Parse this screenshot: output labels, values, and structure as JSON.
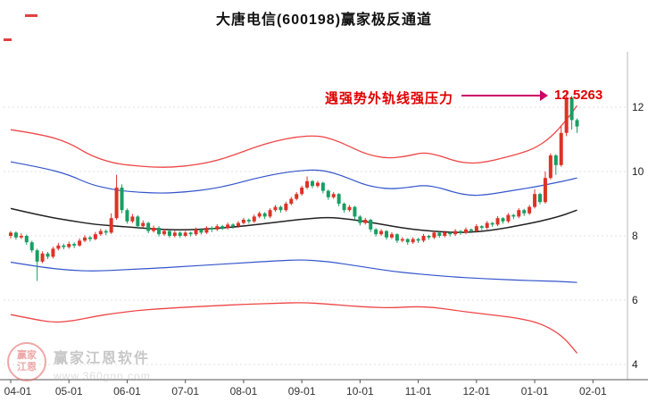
{
  "window": {
    "title": "大唐电信(600198)赢家极反通道"
  },
  "annotation": {
    "pressure_text": "遇强势外轨线强压力",
    "price_label": "12.5263",
    "arrow_color": "#cc0066"
  },
  "watermark": {
    "logo_line1": "赢家",
    "logo_line2": "江恩",
    "brand": "赢家江恩软件",
    "site": "www.360gnn.com"
  },
  "chart_data": {
    "type": "candlestick",
    "title": "大唐电信(600198)赢家极反通道",
    "x_ticks": [
      "04-01",
      "05-01",
      "06-01",
      "07-01",
      "08-01",
      "09-01",
      "10-01",
      "11-01",
      "12-01",
      "01-01",
      "02-01"
    ],
    "y_ticks": [
      12,
      10,
      8,
      6,
      4
    ],
    "ylim": [
      4,
      13.5
    ],
    "candles_per_month": 11,
    "grid": "dotted-horizontal",
    "legend_position": "none",
    "up_color": "#dd3326",
    "down_color": "#189e62",
    "peak_price": 12.5263,
    "candles": [
      [
        8.0,
        8.15,
        7.92,
        8.1
      ],
      [
        8.1,
        8.14,
        7.88,
        7.95
      ],
      [
        7.95,
        8.08,
        7.9,
        8.0
      ],
      [
        8.0,
        8.04,
        7.72,
        7.8
      ],
      [
        7.8,
        7.85,
        7.48,
        7.55
      ],
      [
        7.55,
        7.6,
        6.6,
        7.2
      ],
      [
        7.2,
        7.52,
        7.15,
        7.45
      ],
      [
        7.45,
        7.5,
        7.28,
        7.35
      ],
      [
        7.35,
        7.66,
        7.3,
        7.6
      ],
      [
        7.6,
        7.78,
        7.55,
        7.7
      ],
      [
        7.7,
        7.76,
        7.58,
        7.65
      ],
      [
        7.65,
        7.82,
        7.6,
        7.75
      ],
      [
        7.75,
        7.8,
        7.62,
        7.7
      ],
      [
        7.7,
        7.92,
        7.66,
        7.85
      ],
      [
        7.85,
        8.02,
        7.8,
        7.95
      ],
      [
        7.95,
        8.0,
        7.82,
        7.9
      ],
      [
        7.9,
        8.12,
        7.86,
        8.05
      ],
      [
        8.05,
        8.22,
        8.0,
        8.15
      ],
      [
        8.15,
        8.2,
        8.02,
        8.1
      ],
      [
        8.1,
        8.7,
        8.06,
        8.55
      ],
      [
        8.55,
        9.9,
        8.5,
        9.5
      ],
      [
        9.5,
        9.6,
        8.7,
        8.8
      ],
      [
        8.8,
        8.85,
        8.38,
        8.45
      ],
      [
        8.45,
        8.68,
        8.4,
        8.6
      ],
      [
        8.6,
        8.64,
        8.22,
        8.3
      ],
      [
        8.3,
        8.48,
        8.25,
        8.4
      ],
      [
        8.4,
        8.44,
        8.08,
        8.15
      ],
      [
        8.15,
        8.32,
        8.1,
        8.25
      ],
      [
        8.25,
        8.3,
        7.98,
        8.05
      ],
      [
        8.05,
        8.22,
        8.0,
        8.15
      ],
      [
        8.15,
        8.18,
        7.94,
        8.0
      ],
      [
        8.0,
        8.16,
        7.95,
        8.1
      ],
      [
        8.1,
        8.14,
        7.94,
        8.0
      ],
      [
        8.0,
        8.15,
        7.96,
        8.1
      ],
      [
        8.1,
        8.13,
        7.98,
        8.05
      ],
      [
        8.05,
        8.26,
        8.0,
        8.2
      ],
      [
        8.2,
        8.24,
        8.04,
        8.1
      ],
      [
        8.1,
        8.3,
        8.06,
        8.25
      ],
      [
        8.25,
        8.3,
        8.12,
        8.2
      ],
      [
        8.2,
        8.36,
        8.15,
        8.3
      ],
      [
        8.3,
        8.34,
        8.18,
        8.25
      ],
      [
        8.25,
        8.41,
        8.2,
        8.35
      ],
      [
        8.35,
        8.39,
        8.22,
        8.3
      ],
      [
        8.3,
        8.46,
        8.25,
        8.4
      ],
      [
        8.4,
        8.56,
        8.35,
        8.5
      ],
      [
        8.5,
        8.54,
        8.38,
        8.45
      ],
      [
        8.45,
        8.66,
        8.4,
        8.6
      ],
      [
        8.6,
        8.76,
        8.55,
        8.7
      ],
      [
        8.7,
        8.74,
        8.52,
        8.6
      ],
      [
        8.6,
        8.86,
        8.55,
        8.8
      ],
      [
        8.8,
        8.96,
        8.75,
        8.9
      ],
      [
        8.9,
        8.94,
        8.72,
        8.8
      ],
      [
        8.8,
        9.06,
        8.75,
        9.0
      ],
      [
        9.0,
        9.21,
        8.95,
        9.15
      ],
      [
        9.15,
        9.36,
        9.1,
        9.3
      ],
      [
        9.3,
        9.56,
        9.25,
        9.5
      ],
      [
        9.5,
        9.85,
        9.45,
        9.7
      ],
      [
        9.7,
        9.74,
        9.48,
        9.55
      ],
      [
        9.55,
        9.71,
        9.5,
        9.65
      ],
      [
        9.65,
        9.68,
        9.32,
        9.4
      ],
      [
        9.4,
        9.44,
        9.12,
        9.2
      ],
      [
        9.2,
        9.36,
        9.15,
        9.3
      ],
      [
        9.3,
        9.33,
        8.92,
        9.0
      ],
      [
        9.0,
        9.04,
        8.72,
        8.8
      ],
      [
        8.8,
        8.96,
        8.75,
        8.9
      ],
      [
        8.9,
        8.93,
        8.52,
        8.6
      ],
      [
        8.6,
        8.64,
        8.32,
        8.4
      ],
      [
        8.4,
        8.56,
        8.35,
        8.5
      ],
      [
        8.5,
        8.53,
        8.12,
        8.2
      ],
      [
        8.2,
        8.24,
        7.98,
        8.05
      ],
      [
        8.05,
        8.21,
        8.0,
        8.15
      ],
      [
        8.15,
        8.18,
        7.88,
        7.95
      ],
      [
        7.95,
        8.11,
        7.9,
        8.05
      ],
      [
        8.05,
        8.08,
        7.78,
        7.85
      ],
      [
        7.85,
        7.96,
        7.8,
        7.9
      ],
      [
        7.9,
        7.93,
        7.72,
        7.8
      ],
      [
        7.8,
        7.96,
        7.75,
        7.9
      ],
      [
        7.9,
        7.94,
        7.78,
        7.85
      ],
      [
        7.85,
        8.06,
        7.8,
        8.0
      ],
      [
        8.0,
        8.03,
        7.88,
        7.95
      ],
      [
        7.95,
        8.16,
        7.9,
        8.1
      ],
      [
        8.1,
        8.13,
        7.94,
        8.0
      ],
      [
        8.0,
        8.16,
        7.95,
        8.1
      ],
      [
        8.1,
        8.13,
        7.98,
        8.05
      ],
      [
        8.05,
        8.21,
        8.0,
        8.15
      ],
      [
        8.15,
        8.18,
        8.03,
        8.1
      ],
      [
        8.1,
        8.26,
        8.05,
        8.2
      ],
      [
        8.2,
        8.23,
        8.08,
        8.15
      ],
      [
        8.15,
        8.36,
        8.1,
        8.3
      ],
      [
        8.3,
        8.33,
        8.18,
        8.25
      ],
      [
        8.25,
        8.46,
        8.2,
        8.4
      ],
      [
        8.4,
        8.43,
        8.28,
        8.35
      ],
      [
        8.35,
        8.61,
        8.3,
        8.55
      ],
      [
        8.55,
        8.58,
        8.38,
        8.45
      ],
      [
        8.45,
        8.71,
        8.4,
        8.65
      ],
      [
        8.65,
        8.68,
        8.52,
        8.6
      ],
      [
        8.6,
        8.86,
        8.55,
        8.8
      ],
      [
        8.8,
        8.84,
        8.62,
        8.7
      ],
      [
        8.7,
        8.96,
        8.65,
        8.9
      ],
      [
        8.9,
        9.45,
        8.85,
        9.3
      ],
      [
        9.3,
        9.34,
        8.98,
        9.05
      ],
      [
        9.05,
        10.0,
        9.0,
        9.8
      ],
      [
        9.8,
        10.56,
        9.75,
        10.5
      ],
      [
        10.5,
        10.54,
        9.9,
        10.2
      ],
      [
        10.2,
        11.4,
        10.15,
        11.2
      ],
      [
        11.2,
        12.53,
        11.1,
        12.3
      ],
      [
        12.3,
        12.35,
        11.3,
        11.6
      ],
      [
        11.6,
        11.65,
        11.2,
        11.4
      ]
    ],
    "lines": [
      {
        "name": "outer-rail-top",
        "color": "#ee4545",
        "width": 1.3,
        "points": [
          [
            0,
            11.3
          ],
          [
            6,
            11.15
          ],
          [
            11,
            10.9
          ],
          [
            15,
            10.5
          ],
          [
            19,
            10.28
          ],
          [
            22,
            10.2
          ],
          [
            28,
            10.12
          ],
          [
            33,
            10.16
          ],
          [
            38,
            10.3
          ],
          [
            42,
            10.5
          ],
          [
            46,
            10.75
          ],
          [
            50,
            10.95
          ],
          [
            54,
            11.08
          ],
          [
            58,
            11.12
          ],
          [
            61,
            11.0
          ],
          [
            64,
            10.78
          ],
          [
            67,
            10.55
          ],
          [
            71,
            10.4
          ],
          [
            75,
            10.48
          ],
          [
            78,
            10.6
          ],
          [
            81,
            10.5
          ],
          [
            84,
            10.32
          ],
          [
            87,
            10.25
          ],
          [
            90,
            10.3
          ],
          [
            93,
            10.42
          ],
          [
            96,
            10.55
          ],
          [
            99,
            10.72
          ],
          [
            102,
            11.05
          ],
          [
            105,
            11.6
          ],
          [
            107,
            12.05
          ]
        ]
      },
      {
        "name": "inner-rail-top",
        "color": "#3355cc",
        "width": 1.2,
        "points": [
          [
            0,
            10.3
          ],
          [
            6,
            10.12
          ],
          [
            11,
            9.9
          ],
          [
            15,
            9.6
          ],
          [
            19,
            9.45
          ],
          [
            22,
            9.38
          ],
          [
            28,
            9.32
          ],
          [
            33,
            9.36
          ],
          [
            38,
            9.46
          ],
          [
            42,
            9.6
          ],
          [
            46,
            9.78
          ],
          [
            50,
            9.92
          ],
          [
            54,
            10.02
          ],
          [
            58,
            10.06
          ],
          [
            61,
            9.96
          ],
          [
            64,
            9.78
          ],
          [
            67,
            9.58
          ],
          [
            71,
            9.45
          ],
          [
            75,
            9.5
          ],
          [
            78,
            9.58
          ],
          [
            81,
            9.5
          ],
          [
            84,
            9.34
          ],
          [
            87,
            9.25
          ],
          [
            90,
            9.28
          ],
          [
            93,
            9.36
          ],
          [
            96,
            9.44
          ],
          [
            99,
            9.52
          ],
          [
            102,
            9.62
          ],
          [
            105,
            9.72
          ],
          [
            107,
            9.8
          ]
        ]
      },
      {
        "name": "mid-line",
        "color": "#222222",
        "width": 1.5,
        "points": [
          [
            0,
            8.85
          ],
          [
            6,
            8.62
          ],
          [
            11,
            8.48
          ],
          [
            16,
            8.35
          ],
          [
            22,
            8.28
          ],
          [
            28,
            8.2
          ],
          [
            33,
            8.18
          ],
          [
            38,
            8.22
          ],
          [
            44,
            8.3
          ],
          [
            50,
            8.42
          ],
          [
            55,
            8.52
          ],
          [
            60,
            8.58
          ],
          [
            64,
            8.52
          ],
          [
            68,
            8.42
          ],
          [
            72,
            8.3
          ],
          [
            76,
            8.2
          ],
          [
            80,
            8.14
          ],
          [
            84,
            8.1
          ],
          [
            88,
            8.12
          ],
          [
            92,
            8.2
          ],
          [
            96,
            8.32
          ],
          [
            100,
            8.45
          ],
          [
            104,
            8.62
          ],
          [
            107,
            8.8
          ]
        ]
      },
      {
        "name": "inner-rail-bottom",
        "color": "#3355cc",
        "width": 1.2,
        "points": [
          [
            0,
            7.18
          ],
          [
            6,
            7.02
          ],
          [
            11,
            6.93
          ],
          [
            16,
            6.9
          ],
          [
            22,
            6.95
          ],
          [
            28,
            7.0
          ],
          [
            33,
            7.05
          ],
          [
            38,
            7.1
          ],
          [
            44,
            7.16
          ],
          [
            50,
            7.22
          ],
          [
            55,
            7.26
          ],
          [
            60,
            7.2
          ],
          [
            64,
            7.1
          ],
          [
            68,
            7.0
          ],
          [
            72,
            6.9
          ],
          [
            76,
            6.83
          ],
          [
            80,
            6.77
          ],
          [
            84,
            6.72
          ],
          [
            88,
            6.68
          ],
          [
            92,
            6.65
          ],
          [
            96,
            6.62
          ],
          [
            100,
            6.6
          ],
          [
            104,
            6.58
          ],
          [
            107,
            6.55
          ]
        ]
      },
      {
        "name": "outer-rail-bottom",
        "color": "#ee4545",
        "width": 1.3,
        "points": [
          [
            0,
            5.55
          ],
          [
            4,
            5.42
          ],
          [
            8,
            5.3
          ],
          [
            12,
            5.36
          ],
          [
            16,
            5.5
          ],
          [
            20,
            5.6
          ],
          [
            24,
            5.68
          ],
          [
            28,
            5.73
          ],
          [
            33,
            5.78
          ],
          [
            38,
            5.82
          ],
          [
            44,
            5.87
          ],
          [
            50,
            5.9
          ],
          [
            55,
            5.93
          ],
          [
            60,
            5.88
          ],
          [
            64,
            5.82
          ],
          [
            68,
            5.78
          ],
          [
            72,
            5.76
          ],
          [
            76,
            5.8
          ],
          [
            80,
            5.78
          ],
          [
            84,
            5.68
          ],
          [
            88,
            5.6
          ],
          [
            92,
            5.52
          ],
          [
            96,
            5.44
          ],
          [
            100,
            5.28
          ],
          [
            103,
            5.02
          ],
          [
            105,
            4.75
          ],
          [
            107,
            4.35
          ]
        ]
      }
    ]
  }
}
